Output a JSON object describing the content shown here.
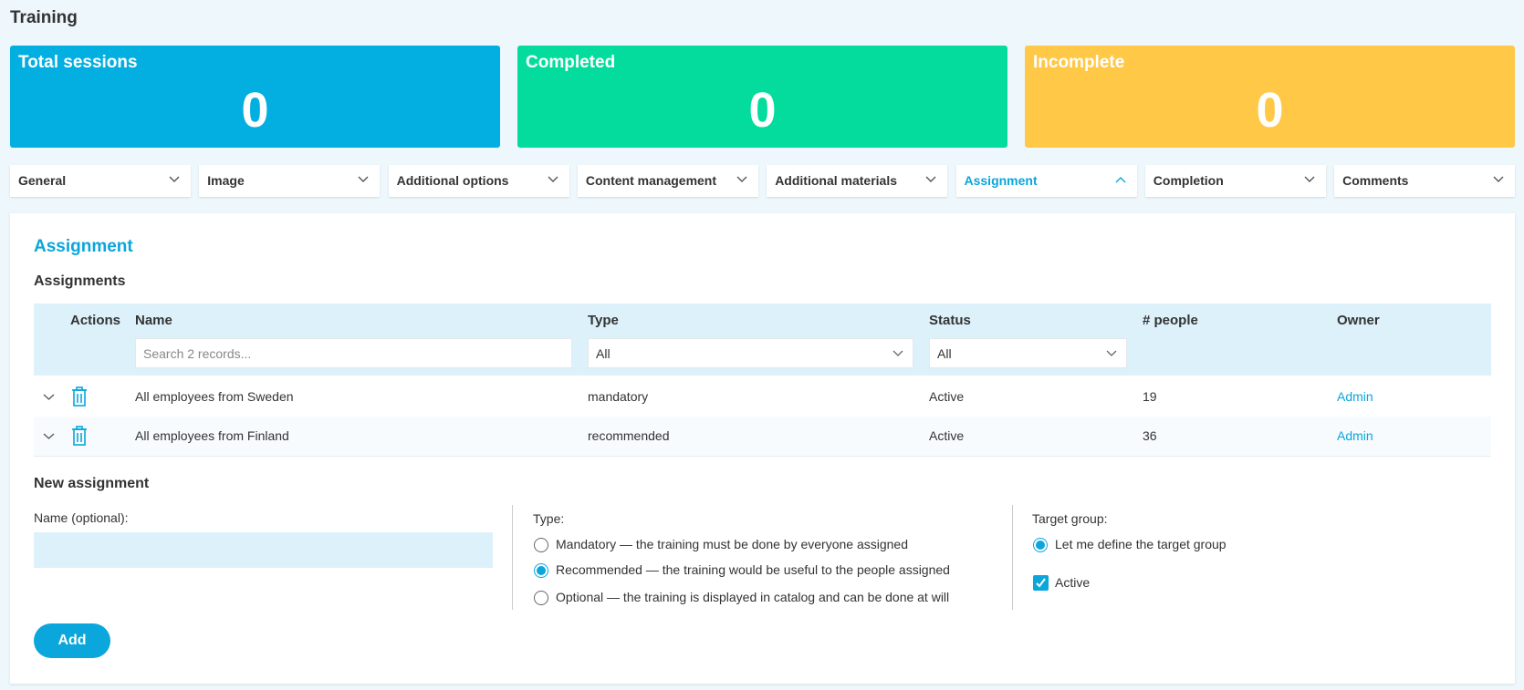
{
  "header": {
    "title": "Training"
  },
  "stats": [
    {
      "label": "Total sessions",
      "value": 0
    },
    {
      "label": "Completed",
      "value": 0
    },
    {
      "label": "Incomplete",
      "value": 0
    }
  ],
  "tabs": [
    "General",
    "Image",
    "Additional options",
    "Content management",
    "Additional materials",
    "Assignment",
    "Completion",
    "Comments"
  ],
  "section": {
    "title": "Assignment",
    "subtitle": "Assignments"
  },
  "table": {
    "headers": [
      "Actions",
      "Name",
      "Type",
      "Status",
      "# people",
      "Owner"
    ],
    "filters": {
      "name_placeholder": "Search 2 records...",
      "type": "All",
      "status": "All"
    },
    "rows": [
      [
        "All employees from Sweden",
        "mandatory",
        "Active",
        19,
        "Admin"
      ],
      [
        "All employees from Finland",
        "recommended",
        "Active",
        36,
        "Admin"
      ]
    ]
  },
  "new_assignment": {
    "title": "New assignment",
    "name_label": "Name (optional):",
    "type_label": "Type:",
    "type_options": [
      "Mandatory — the training must be done by everyone assigned",
      "Recommended — the training would be useful to the people assigned",
      "Optional — the training is displayed in catalog and can be done at will"
    ],
    "target_label": "Target group:",
    "target_options": [
      "Let me define the target group"
    ],
    "active_label": "Active",
    "button": "Add"
  }
}
